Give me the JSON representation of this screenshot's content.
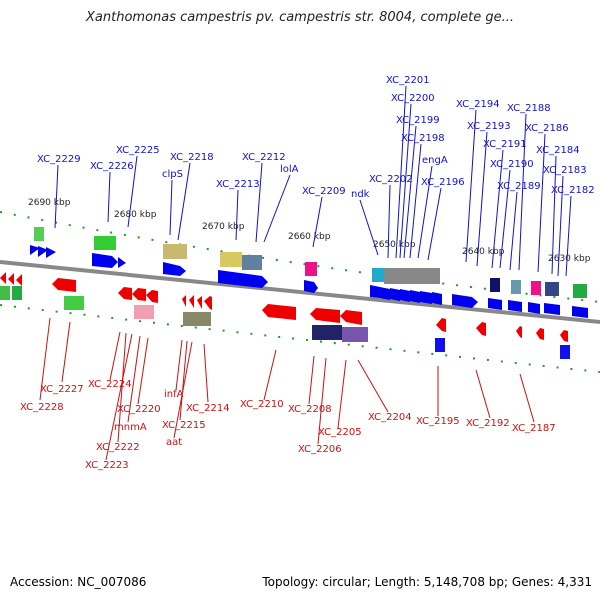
{
  "title": "Xanthomonas campestris pv. campestris str. 8004, complete ge...",
  "footer": {
    "accession": "Accession: NC_007086",
    "summary": "Topology: circular; Length: 5,148,708 bp; Genes: 4,331"
  },
  "colors": {
    "forward": "#0000ee",
    "reverse": "#ee0000",
    "backbone": "#888888",
    "tick": "#229922",
    "forward_label": "#1111cc",
    "reverse_label": "#cc1111"
  },
  "scale_labels": [
    "2690 kbp",
    "2680 kbp",
    "2670 kbp",
    "2660 kbp",
    "2650 kbp",
    "2640 kbp",
    "2630 kbp"
  ],
  "forward_genes": [
    "XC_2229",
    "XC_2226",
    "XC_2225",
    "clpS",
    "XC_2218",
    "XC_2213",
    "XC_2212",
    "lolA",
    "XC_2209",
    "ndk",
    "XC_2202",
    "XC_2201",
    "XC_2200",
    "XC_2199",
    "XC_2198",
    "engA",
    "XC_2196",
    "XC_2194",
    "XC_2193",
    "XC_2191",
    "XC_2190",
    "XC_2189",
    "XC_2188",
    "XC_2186",
    "XC_2184",
    "XC_2183",
    "XC_2182"
  ],
  "reverse_genes": [
    "XC_2227",
    "XC_2228",
    "XC_2224",
    "XC_2222",
    "XC_2223",
    "mnmA",
    "XC_2220",
    "infA",
    "XC_2215",
    "aat",
    "XC_2214",
    "XC_2210",
    "XC_2208",
    "XC_2206",
    "XC_2205",
    "XC_2204",
    "XC_2195",
    "XC_2192",
    "XC_2187"
  ]
}
